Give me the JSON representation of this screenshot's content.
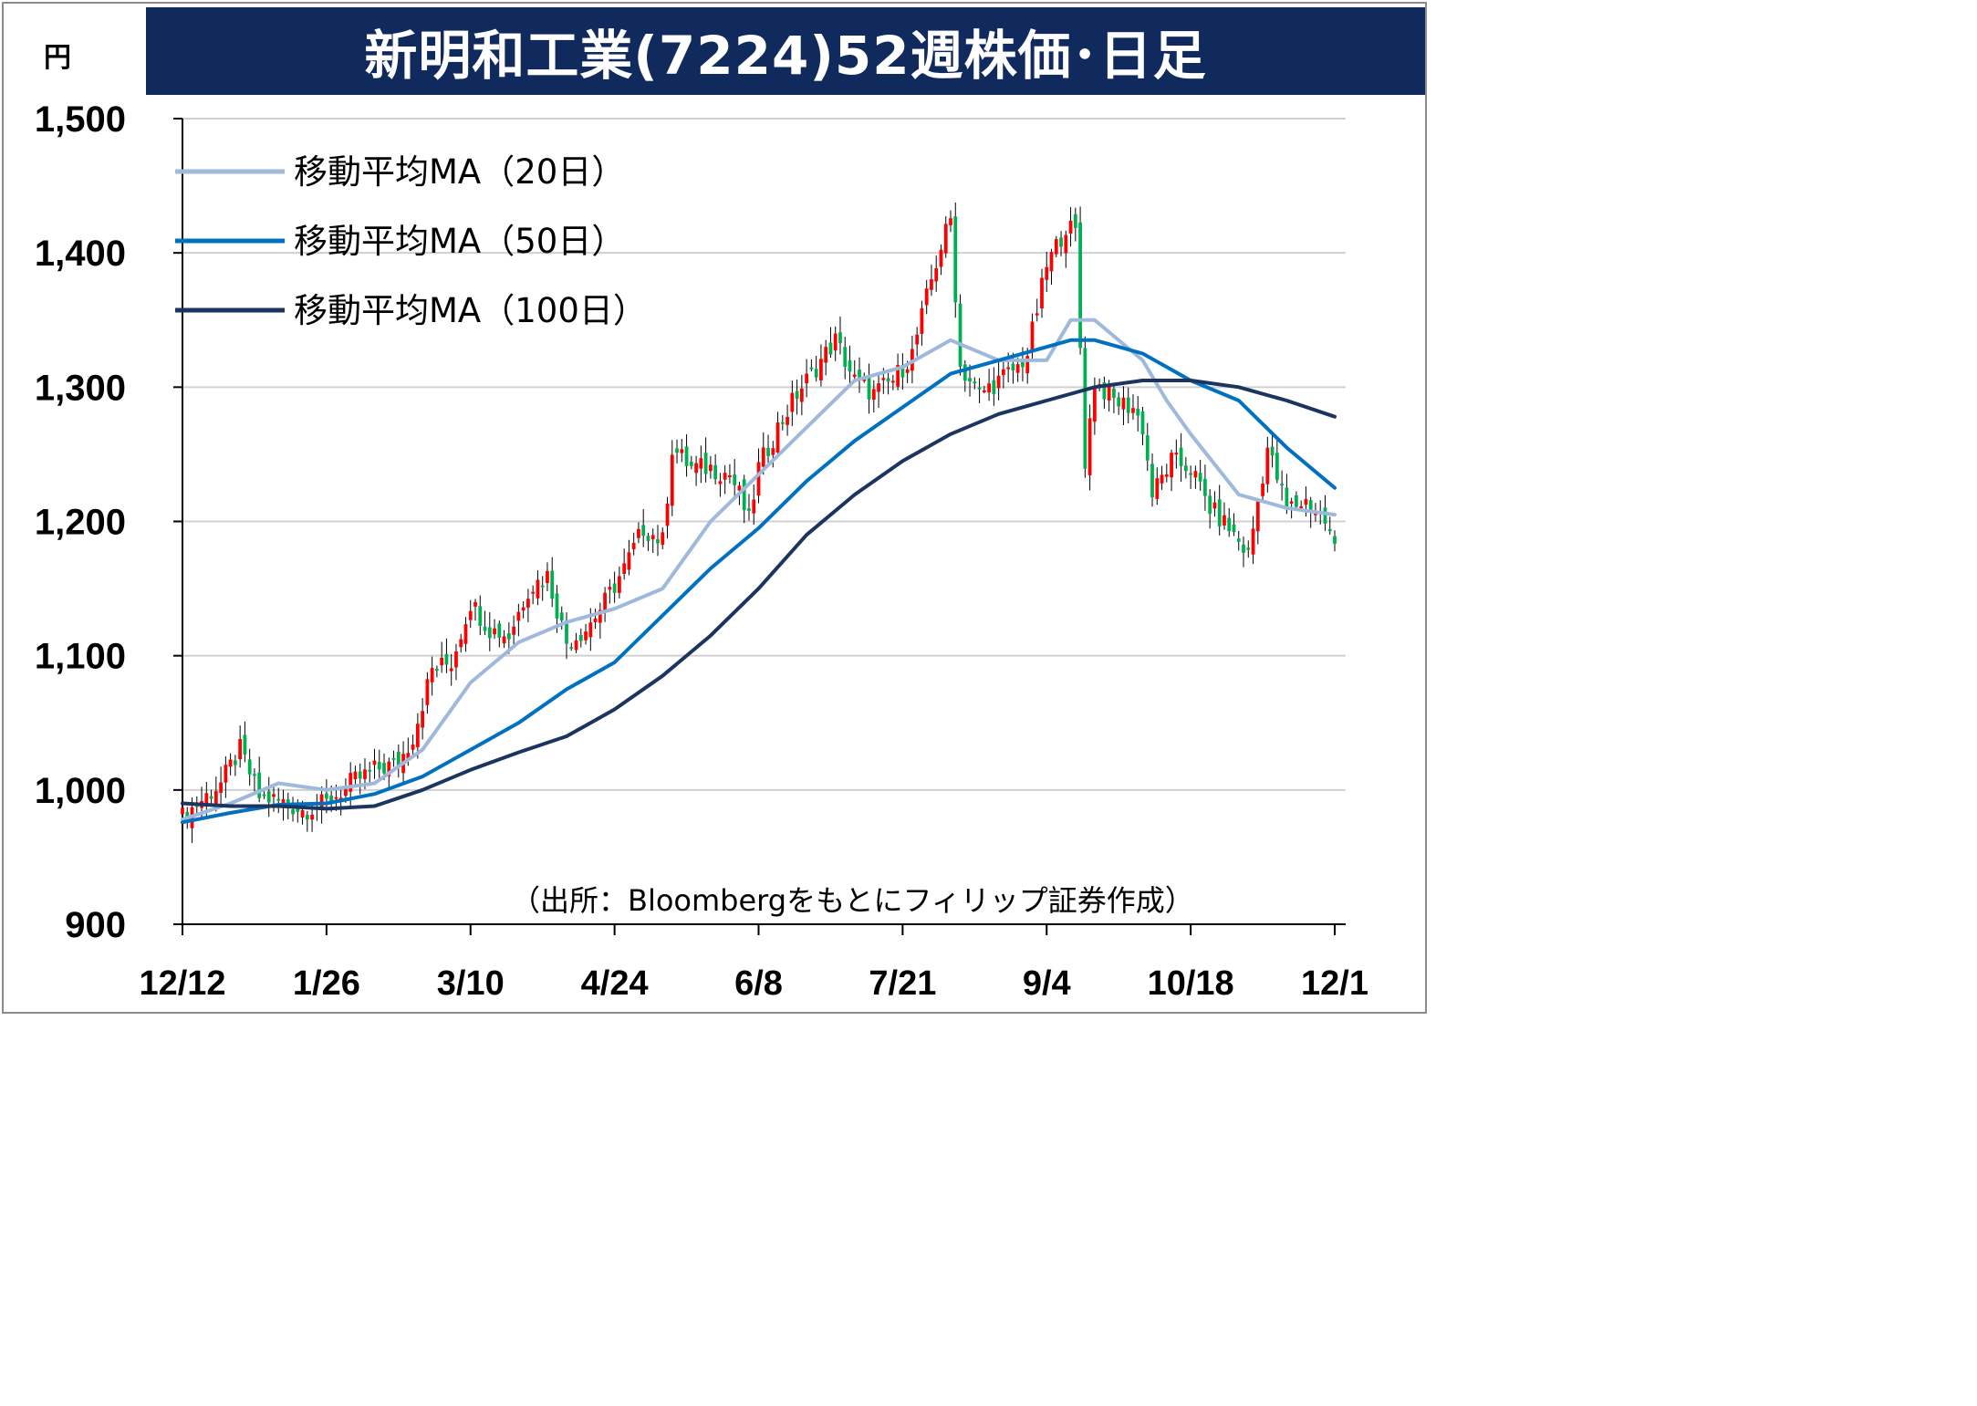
{
  "chart_data": {
    "type": "candlestick",
    "title": "新明和工業(7224)52週株価･日足",
    "unit": "円",
    "source": "（出所：Bloombergをもとにフィリップ証券作成）",
    "ylim": [
      900,
      1500
    ],
    "yticks": [
      "900",
      "1,000",
      "1,100",
      "1,200",
      "1,300",
      "1,400",
      "1,500"
    ],
    "ytick_values": [
      900,
      1000,
      1100,
      1200,
      1300,
      1400,
      1500
    ],
    "xticks": [
      "12/12",
      "1/26",
      "3/10",
      "4/24",
      "6/8",
      "7/21",
      "9/4",
      "10/18",
      "12/1"
    ],
    "xtick_index": [
      0,
      30,
      60,
      90,
      120,
      150,
      180,
      210,
      240
    ],
    "n_days": 241,
    "grid": true,
    "legend_position": "top-left",
    "colors": {
      "up": "#ff0000",
      "down": "#00b050",
      "ma20": "#9eb9dc",
      "ma50": "#0070c0",
      "ma100": "#1b355e",
      "title_bg": "#102a5e",
      "grid": "#d0d0d0"
    },
    "series": [
      {
        "name": "移動平均MA（20日）",
        "color": "#9eb9dc",
        "points": [
          [
            0,
            978
          ],
          [
            10,
            990
          ],
          [
            20,
            1005
          ],
          [
            30,
            1000
          ],
          [
            40,
            1005
          ],
          [
            50,
            1030
          ],
          [
            60,
            1080
          ],
          [
            70,
            1110
          ],
          [
            80,
            1125
          ],
          [
            90,
            1135
          ],
          [
            100,
            1150
          ],
          [
            110,
            1200
          ],
          [
            120,
            1235
          ],
          [
            130,
            1270
          ],
          [
            140,
            1305
          ],
          [
            150,
            1315
          ],
          [
            160,
            1335
          ],
          [
            170,
            1320
          ],
          [
            180,
            1320
          ],
          [
            185,
            1350
          ],
          [
            190,
            1350
          ],
          [
            200,
            1320
          ],
          [
            205,
            1290
          ],
          [
            210,
            1265
          ],
          [
            220,
            1220
          ],
          [
            230,
            1210
          ],
          [
            240,
            1205
          ]
        ]
      },
      {
        "name": "移動平均MA（50日）",
        "color": "#0070c0",
        "points": [
          [
            0,
            976
          ],
          [
            10,
            983
          ],
          [
            20,
            989
          ],
          [
            30,
            990
          ],
          [
            40,
            997
          ],
          [
            50,
            1010
          ],
          [
            60,
            1030
          ],
          [
            70,
            1050
          ],
          [
            80,
            1075
          ],
          [
            90,
            1095
          ],
          [
            100,
            1130
          ],
          [
            110,
            1165
          ],
          [
            120,
            1195
          ],
          [
            130,
            1230
          ],
          [
            140,
            1260
          ],
          [
            150,
            1285
          ],
          [
            160,
            1310
          ],
          [
            170,
            1320
          ],
          [
            180,
            1330
          ],
          [
            185,
            1335
          ],
          [
            190,
            1335
          ],
          [
            200,
            1325
          ],
          [
            210,
            1305
          ],
          [
            220,
            1290
          ],
          [
            230,
            1255
          ],
          [
            240,
            1225
          ]
        ]
      },
      {
        "name": "移動平均MA（100日）",
        "color": "#1b355e",
        "points": [
          [
            0,
            990
          ],
          [
            10,
            988
          ],
          [
            20,
            988
          ],
          [
            30,
            986
          ],
          [
            40,
            988
          ],
          [
            50,
            1000
          ],
          [
            60,
            1015
          ],
          [
            70,
            1028
          ],
          [
            80,
            1040
          ],
          [
            90,
            1060
          ],
          [
            100,
            1085
          ],
          [
            110,
            1115
          ],
          [
            120,
            1150
          ],
          [
            130,
            1190
          ],
          [
            140,
            1220
          ],
          [
            150,
            1245
          ],
          [
            160,
            1265
          ],
          [
            170,
            1280
          ],
          [
            180,
            1290
          ],
          [
            190,
            1300
          ],
          [
            200,
            1305
          ],
          [
            210,
            1305
          ],
          [
            220,
            1300
          ],
          [
            230,
            1290
          ],
          [
            240,
            1278
          ]
        ]
      }
    ],
    "ohlc_anchors": [
      [
        0,
        980
      ],
      [
        8,
        1005
      ],
      [
        12,
        1030
      ],
      [
        16,
        995
      ],
      [
        20,
        992
      ],
      [
        25,
        985
      ],
      [
        30,
        990
      ],
      [
        35,
        1005
      ],
      [
        40,
        1015
      ],
      [
        45,
        1020
      ],
      [
        48,
        1040
      ],
      [
        52,
        1090
      ],
      [
        56,
        1095
      ],
      [
        60,
        1140
      ],
      [
        64,
        1120
      ],
      [
        68,
        1115
      ],
      [
        72,
        1150
      ],
      [
        76,
        1160
      ],
      [
        80,
        1110
      ],
      [
        84,
        1120
      ],
      [
        88,
        1140
      ],
      [
        92,
        1165
      ],
      [
        96,
        1195
      ],
      [
        100,
        1185
      ],
      [
        102,
        1255
      ],
      [
        106,
        1240
      ],
      [
        110,
        1240
      ],
      [
        114,
        1235
      ],
      [
        116,
        1220
      ],
      [
        118,
        1200
      ],
      [
        120,
        1240
      ],
      [
        124,
        1270
      ],
      [
        128,
        1295
      ],
      [
        132,
        1315
      ],
      [
        136,
        1335
      ],
      [
        140,
        1305
      ],
      [
        144,
        1295
      ],
      [
        148,
        1305
      ],
      [
        152,
        1325
      ],
      [
        156,
        1380
      ],
      [
        158,
        1405
      ],
      [
        160,
        1425
      ],
      [
        162,
        1315
      ],
      [
        166,
        1295
      ],
      [
        170,
        1305
      ],
      [
        174,
        1315
      ],
      [
        176,
        1325
      ],
      [
        180,
        1390
      ],
      [
        184,
        1420
      ],
      [
        186,
        1415
      ],
      [
        188,
        1245
      ],
      [
        190,
        1305
      ],
      [
        194,
        1290
      ],
      [
        198,
        1285
      ],
      [
        200,
        1270
      ],
      [
        202,
        1220
      ],
      [
        206,
        1245
      ],
      [
        210,
        1240
      ],
      [
        214,
        1210
      ],
      [
        218,
        1195
      ],
      [
        222,
        1175
      ],
      [
        226,
        1255
      ],
      [
        230,
        1210
      ],
      [
        234,
        1215
      ],
      [
        238,
        1200
      ],
      [
        240,
        1180
      ]
    ]
  }
}
